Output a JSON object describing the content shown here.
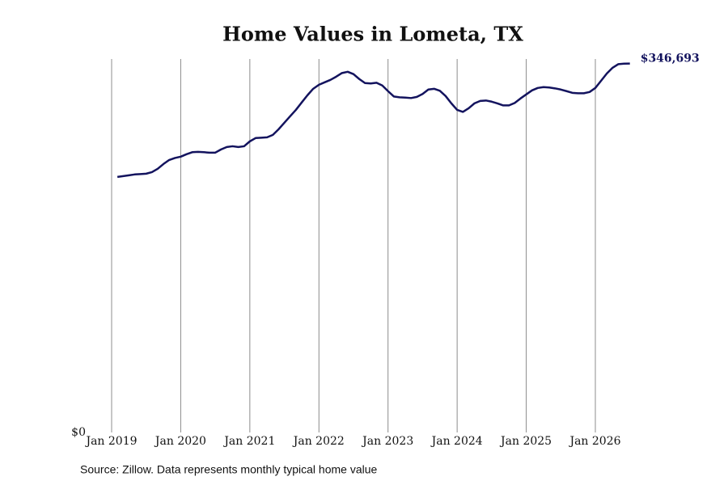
{
  "chart_data": {
    "type": "line",
    "title": "Home Values in Lometa, TX",
    "source": "Source: Zillow. Data represents monthly typical home value",
    "color": "#13135e",
    "x": [
      "2019-02",
      "2019-03",
      "2019-04",
      "2019-05",
      "2019-06",
      "2019-07",
      "2019-08",
      "2019-09",
      "2019-10",
      "2019-11",
      "2019-12",
      "2020-01",
      "2020-02",
      "2020-03",
      "2020-04",
      "2020-05",
      "2020-06",
      "2020-07",
      "2020-08",
      "2020-09",
      "2020-10",
      "2020-11",
      "2020-12",
      "2021-01",
      "2021-02",
      "2021-03",
      "2021-04",
      "2021-05",
      "2021-06",
      "2021-07",
      "2021-08",
      "2021-09",
      "2021-10",
      "2021-11",
      "2021-12",
      "2022-01",
      "2022-02",
      "2022-03",
      "2022-04",
      "2022-05",
      "2022-06",
      "2022-07",
      "2022-08",
      "2022-09",
      "2022-10",
      "2022-11",
      "2022-12",
      "2023-01",
      "2023-02",
      "2023-03",
      "2023-04",
      "2023-05",
      "2023-06",
      "2023-07",
      "2023-08",
      "2023-09",
      "2023-10",
      "2023-11",
      "2023-12",
      "2024-01",
      "2024-02",
      "2024-03",
      "2024-04",
      "2024-05",
      "2024-06",
      "2024-07",
      "2024-08",
      "2024-09",
      "2024-10",
      "2024-11",
      "2024-12",
      "2025-01",
      "2025-02",
      "2025-03",
      "2025-04",
      "2025-05",
      "2025-06",
      "2025-07",
      "2025-08",
      "2025-09",
      "2025-10",
      "2025-11",
      "2025-12",
      "2026-01",
      "2026-02",
      "2026-03",
      "2026-04",
      "2026-05",
      "2026-06",
      "2026-07"
    ],
    "values": [
      240200,
      240900,
      241700,
      242500,
      242800,
      243200,
      244700,
      247800,
      252300,
      256100,
      258000,
      259200,
      261500,
      263400,
      263700,
      263400,
      263000,
      263000,
      266000,
      268300,
      269000,
      268300,
      269000,
      273600,
      276700,
      277000,
      277400,
      279700,
      285000,
      291100,
      297200,
      303200,
      310100,
      316900,
      323000,
      326800,
      329100,
      331400,
      334400,
      337800,
      339000,
      336800,
      332200,
      328400,
      328000,
      328700,
      326100,
      320800,
      315800,
      315000,
      314700,
      314300,
      315400,
      318100,
      322300,
      323000,
      321100,
      316200,
      309300,
      303200,
      301300,
      304700,
      309300,
      311600,
      312000,
      310900,
      309300,
      307400,
      307400,
      309700,
      313900,
      317700,
      321500,
      323800,
      324600,
      324200,
      323400,
      322300,
      320800,
      319200,
      318800,
      318800,
      320000,
      323800,
      330600,
      337400,
      342800,
      346200,
      346600,
      346693
    ],
    "value_labels": [
      null,
      null,
      null,
      null,
      null,
      null,
      null,
      null,
      null,
      null,
      null,
      null,
      null,
      null,
      null,
      null,
      null,
      null,
      null,
      null,
      null,
      null,
      null,
      null,
      null,
      null,
      null,
      null,
      null,
      null,
      null,
      null,
      null,
      null,
      null,
      null,
      null,
      null,
      null,
      null,
      null,
      null,
      null,
      null,
      null,
      null,
      null,
      null,
      null,
      null,
      null,
      null,
      null,
      null,
      null,
      null,
      null,
      null,
      null,
      null,
      null,
      null,
      null,
      null,
      null,
      null,
      null,
      null,
      null,
      null,
      null,
      null,
      null,
      null,
      null,
      null,
      null,
      null,
      null,
      null,
      null,
      null,
      null,
      null,
      null,
      null,
      null,
      null,
      null,
      "$346,693"
    ],
    "xlim": [
      "2019-01",
      "2026-07"
    ],
    "xticks": [
      {
        "value": "2019-01",
        "label": "Jan 2019"
      },
      {
        "value": "2020-01",
        "label": "Jan 2020"
      },
      {
        "value": "2021-01",
        "label": "Jan 2021"
      },
      {
        "value": "2022-01",
        "label": "Jan 2022"
      },
      {
        "value": "2023-01",
        "label": "Jan 2023"
      },
      {
        "value": "2024-01",
        "label": "Jan 2024"
      },
      {
        "value": "2025-01",
        "label": "Jan 2025"
      },
      {
        "value": "2026-01",
        "label": "Jan 2026"
      }
    ],
    "ylim": [
      0,
      351000
    ],
    "yticks": [
      {
        "value": 0,
        "label": "$0"
      }
    ],
    "grid": true
  }
}
